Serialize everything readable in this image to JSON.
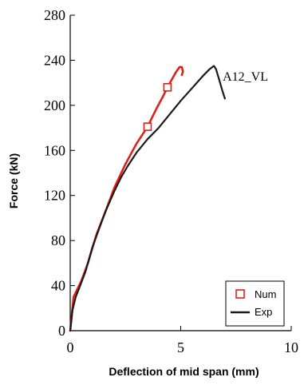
{
  "chart_data": {
    "type": "line",
    "title": "",
    "xlabel": "Deflection of mid span (mm)",
    "ylabel": "Force (kN)",
    "xlim": [
      0,
      10
    ],
    "ylim": [
      0,
      280
    ],
    "xticks": [
      0,
      5,
      10
    ],
    "xtick_labels": [
      "0",
      "5",
      "10"
    ],
    "yticks": [
      0,
      40,
      80,
      120,
      160,
      200,
      240,
      280
    ],
    "ytick_labels": [
      "0",
      "40",
      "80",
      "120",
      "160",
      "200",
      "240",
      "280"
    ],
    "grid": false,
    "legend_position": "bottom-right",
    "annotations": [
      {
        "text": "A12_VL",
        "x": 6.9,
        "y": 222
      }
    ],
    "series": [
      {
        "name": "Num",
        "color": "#e0201b",
        "marker": "square-open",
        "marker_points": [
          [
            3.5,
            181
          ],
          [
            4.4,
            216
          ]
        ],
        "x": [
          0.0,
          0.15,
          0.35,
          0.5,
          0.8,
          1.2,
          1.6,
          2.0,
          2.5,
          3.0,
          3.5,
          3.9,
          4.2,
          4.4,
          4.6,
          4.8,
          4.95,
          5.05,
          5.1,
          5.05
        ],
        "y": [
          0,
          30,
          38,
          44,
          60,
          86,
          106,
          127,
          148,
          166,
          181,
          197,
          208,
          216,
          223,
          230,
          234,
          234,
          230,
          227
        ]
      },
      {
        "name": "Exp",
        "color": "#1a1a1a",
        "marker": "none",
        "x": [
          0.0,
          0.1,
          0.25,
          0.45,
          0.7,
          1.0,
          1.3,
          1.6,
          2.0,
          2.3,
          2.6,
          3.0,
          3.5,
          4.0,
          4.5,
          5.0,
          5.5,
          6.0,
          6.3,
          6.5,
          6.6,
          6.75,
          6.9,
          7.0
        ],
        "y": [
          0,
          18,
          30,
          40,
          53,
          74,
          90,
          106,
          124,
          136,
          146,
          158,
          170,
          180,
          192,
          204,
          215,
          226,
          232,
          235,
          232,
          222,
          212,
          206
        ]
      }
    ]
  }
}
